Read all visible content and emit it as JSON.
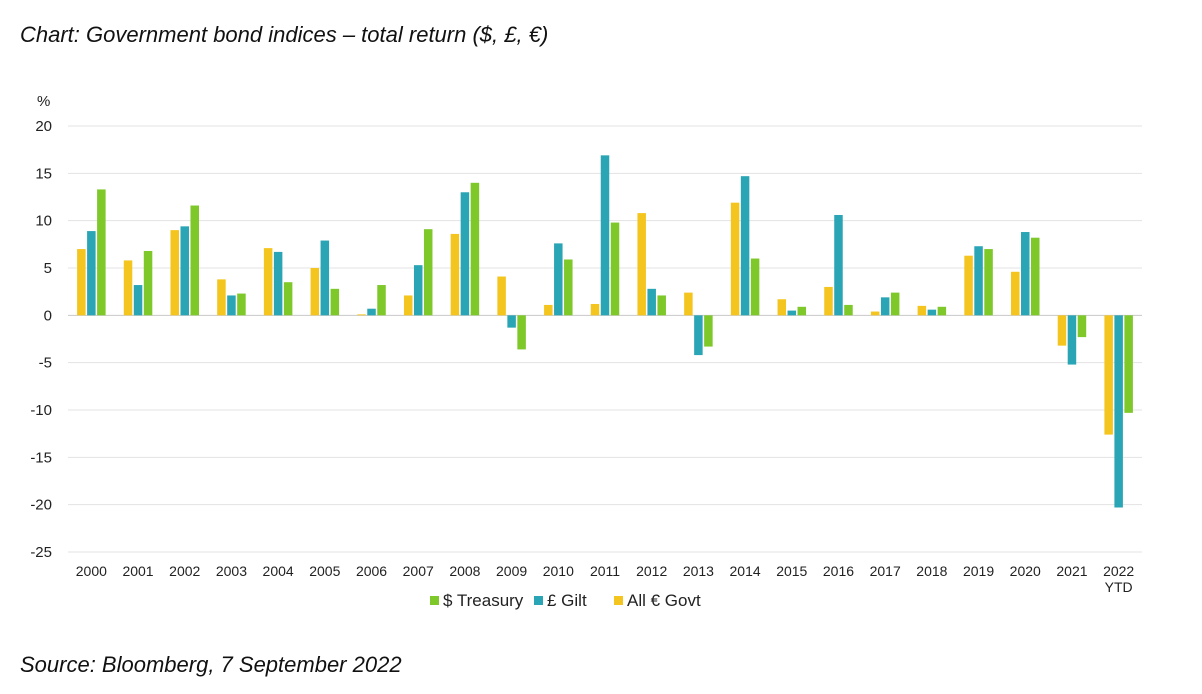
{
  "title": "Chart: Government bond indices – total return ($, £, €)",
  "source": "Source: Bloomberg, 7 September 2022",
  "chart_data": {
    "type": "bar",
    "ylabel": "%",
    "ylim": [
      -25,
      20
    ],
    "yticks": [
      20,
      15,
      10,
      5,
      0,
      -5,
      -10,
      -15,
      -20,
      -25
    ],
    "grid": true,
    "legend_position": "bottom-center",
    "categories": [
      "2000",
      "2001",
      "2002",
      "2003",
      "2004",
      "2005",
      "2006",
      "2007",
      "2008",
      "2009",
      "2010",
      "2011",
      "2012",
      "2013",
      "2014",
      "2015",
      "2016",
      "2017",
      "2018",
      "2019",
      "2020",
      "2021",
      "2022 YTD"
    ],
    "series": [
      {
        "name": "All € Govt",
        "color": "#f5c51f",
        "values": [
          7.0,
          5.8,
          9.0,
          3.8,
          7.1,
          5.0,
          0.1,
          2.1,
          8.6,
          4.1,
          1.1,
          1.2,
          10.8,
          2.4,
          11.9,
          1.7,
          3.0,
          0.4,
          1.0,
          6.3,
          4.6,
          -3.2,
          -12.6
        ]
      },
      {
        "name": "£ Gilt",
        "color": "#2aa5b5",
        "values": [
          8.9,
          3.2,
          9.4,
          2.1,
          6.7,
          7.9,
          0.7,
          5.3,
          13.0,
          -1.3,
          7.6,
          16.9,
          2.8,
          -4.2,
          14.7,
          0.5,
          10.6,
          1.9,
          0.6,
          7.3,
          8.8,
          -5.2,
          -20.3
        ]
      },
      {
        "name": "$ Treasury",
        "color": "#7ec82a",
        "values": [
          13.3,
          6.8,
          11.6,
          2.3,
          3.5,
          2.8,
          3.2,
          9.1,
          14.0,
          -3.6,
          5.9,
          9.8,
          2.1,
          -3.3,
          6.0,
          0.9,
          1.1,
          2.4,
          0.9,
          7.0,
          8.2,
          -2.3,
          -10.3
        ]
      }
    ],
    "legend": [
      {
        "name": "$ Treasury",
        "color": "#7ec82a"
      },
      {
        "name": "£ Gilt",
        "color": "#2aa5b5"
      },
      {
        "name": "All € Govt",
        "color": "#f5c51f"
      }
    ]
  }
}
